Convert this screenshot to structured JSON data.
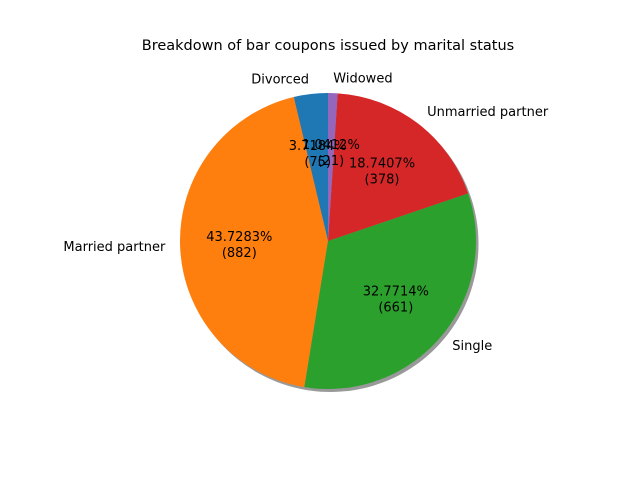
{
  "chart_data": {
    "type": "pie",
    "title": "Breakdown of bar coupons issued by marital status",
    "start_angle_deg": 90,
    "direction": "counterclockwise",
    "shadow": true,
    "slices": [
      {
        "label": "Divorced",
        "value": 75,
        "percent_label": "3.7184%",
        "count_label": "(75)",
        "color": "#1f77b4"
      },
      {
        "label": "Married partner",
        "value": 882,
        "percent_label": "43.7283%",
        "count_label": "(882)",
        "color": "#ff7f0e"
      },
      {
        "label": "Single",
        "value": 661,
        "percent_label": "32.7714%",
        "count_label": "(661)",
        "color": "#2ca02c"
      },
      {
        "label": "Unmarried partner",
        "value": 378,
        "percent_label": "18.7407%",
        "count_label": "(378)",
        "color": "#d62728"
      },
      {
        "label": "Widowed",
        "value": 21,
        "percent_label": "1.0412%",
        "count_label": "(21)",
        "color": "#9467bd"
      }
    ]
  }
}
